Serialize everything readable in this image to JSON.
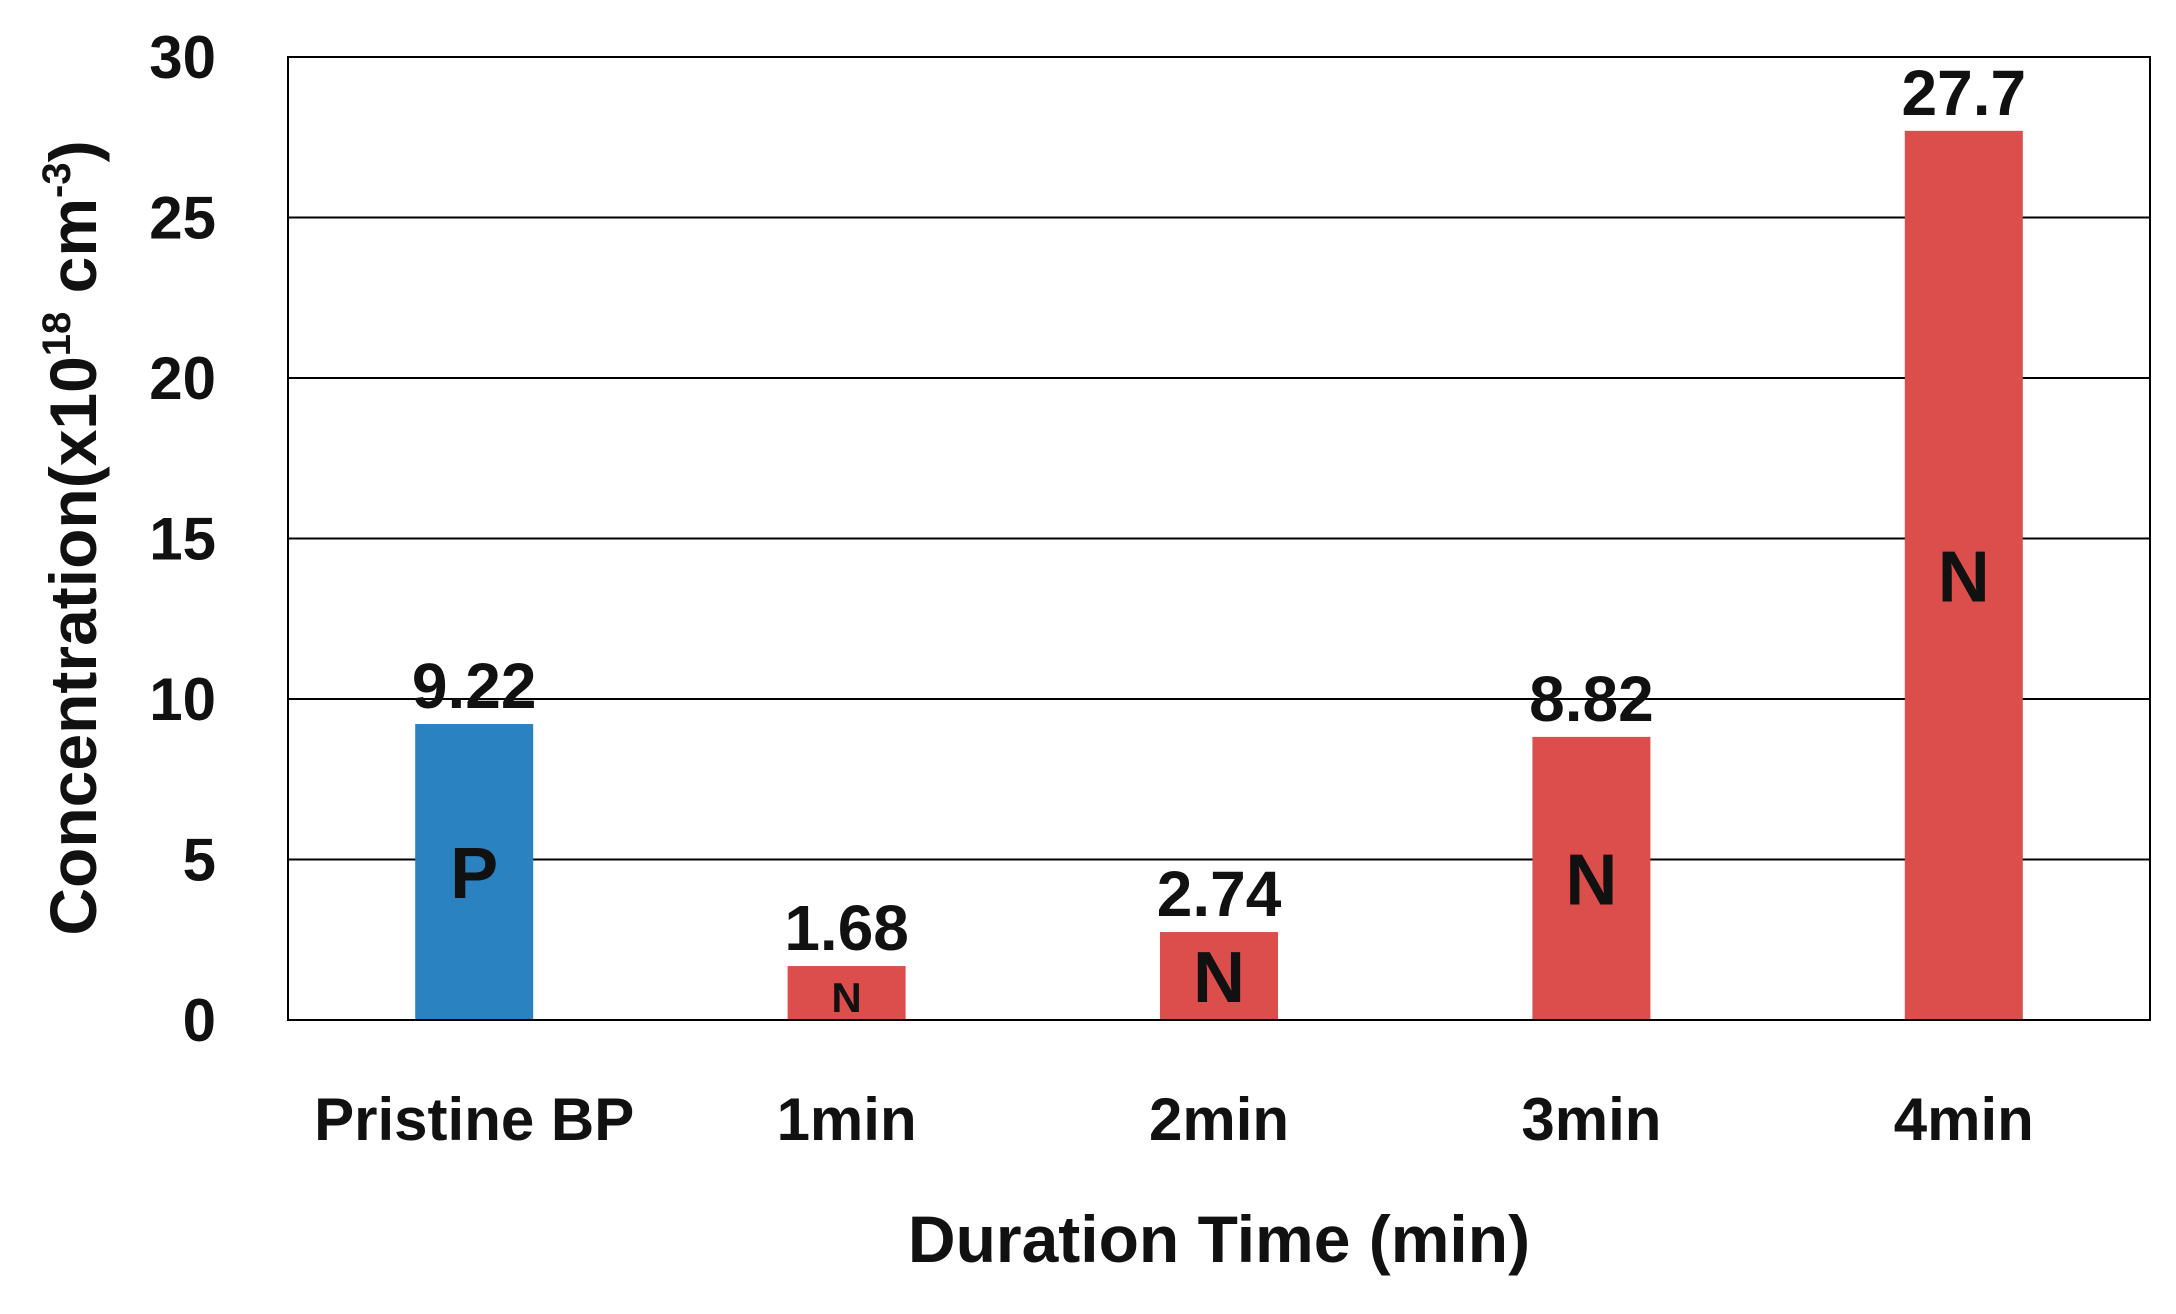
{
  "chart_data": {
    "type": "bar",
    "title": "",
    "xlabel": "Duration Time (min)",
    "ylabel": {
      "base": "Concentration(x10",
      "exp1": "18",
      "mid": " cm",
      "exp2": "-3",
      "end": ")"
    },
    "categories": [
      "Pristine BP",
      "1min",
      "2min",
      "3min",
      "4min"
    ],
    "values": [
      9.22,
      1.68,
      2.74,
      8.82,
      27.7
    ],
    "value_labels": [
      "9.22",
      "1.68",
      "2.74",
      "8.82",
      "27.7"
    ],
    "bar_type_labels": [
      "P",
      "N",
      "N",
      "N",
      "N"
    ],
    "bar_colors": [
      "#2a82c1",
      "#db4e4b",
      "#db4e4b",
      "#db4e4b",
      "#db4e4b"
    ],
    "ylim": [
      0,
      30
    ],
    "yticks": [
      0,
      5,
      10,
      15,
      20,
      25,
      30
    ],
    "grid": true,
    "legend": "none"
  }
}
